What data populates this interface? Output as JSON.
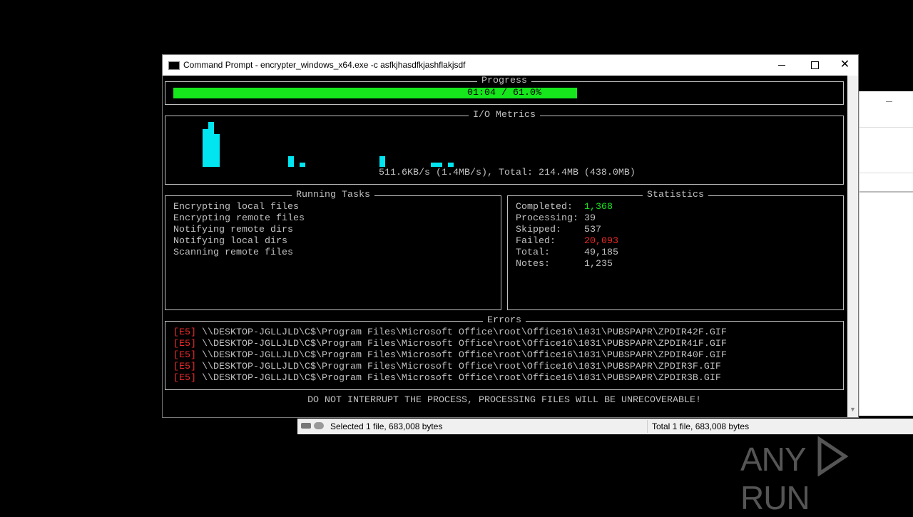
{
  "window": {
    "title": "Command Prompt - encrypter_windows_x64.exe  -c asfkjhasdfkjashflakjsdf"
  },
  "progress": {
    "title": "Progress",
    "label": "01:04 / 61.0%",
    "percent": 61.0
  },
  "io_metrics": {
    "title": "I/O Metrics",
    "summary": "511.6KB/s (1.4MB/s), Total: 214.4MB (438.0MB)"
  },
  "running_tasks": {
    "title": "Running Tasks",
    "items": [
      "Encrypting local files",
      "Encrypting remote files",
      "Notifying remote dirs",
      "Notifying local dirs",
      "Scanning remote files"
    ]
  },
  "statistics": {
    "title": "Statistics",
    "rows": [
      {
        "label": "Completed:",
        "value": "1,368"
      },
      {
        "label": "Processing:",
        "value": "39"
      },
      {
        "label": "Skipped:",
        "value": "537"
      },
      {
        "label": "Failed:",
        "value": "20,093"
      },
      {
        "label": "Total:",
        "value": "49,185"
      },
      {
        "label": "Notes:",
        "value": "1,235"
      }
    ]
  },
  "errors": {
    "title": "Errors",
    "rows": [
      {
        "code": "[E5]",
        "path": "\\\\DESKTOP-JGLLJLD\\C$\\Program Files\\Microsoft Office\\root\\Office16\\1031\\PUBSPAPR\\ZPDIR42F.GIF"
      },
      {
        "code": "[E5]",
        "path": "\\\\DESKTOP-JGLLJLD\\C$\\Program Files\\Microsoft Office\\root\\Office16\\1031\\PUBSPAPR\\ZPDIR41F.GIF"
      },
      {
        "code": "[E5]",
        "path": "\\\\DESKTOP-JGLLJLD\\C$\\Program Files\\Microsoft Office\\root\\Office16\\1031\\PUBSPAPR\\ZPDIR40F.GIF"
      },
      {
        "code": "[E5]",
        "path": "\\\\DESKTOP-JGLLJLD\\C$\\Program Files\\Microsoft Office\\root\\Office16\\1031\\PUBSPAPR\\ZPDIR3F.GIF"
      },
      {
        "code": "[E5]",
        "path": "\\\\DESKTOP-JGLLJLD\\C$\\Program Files\\Microsoft Office\\root\\Office16\\1031\\PUBSPAPR\\ZPDIR3B.GIF"
      }
    ]
  },
  "warning": "DO NOT INTERRUPT THE PROCESS, PROCESSING FILES WILL BE UNRECOVERABLE!",
  "status_bar": {
    "left": "Selected 1 file, 683,008 bytes",
    "right": "Total 1 file, 683,008 bytes"
  },
  "watermark": {
    "left": "ANY",
    "right": "RUN"
  }
}
